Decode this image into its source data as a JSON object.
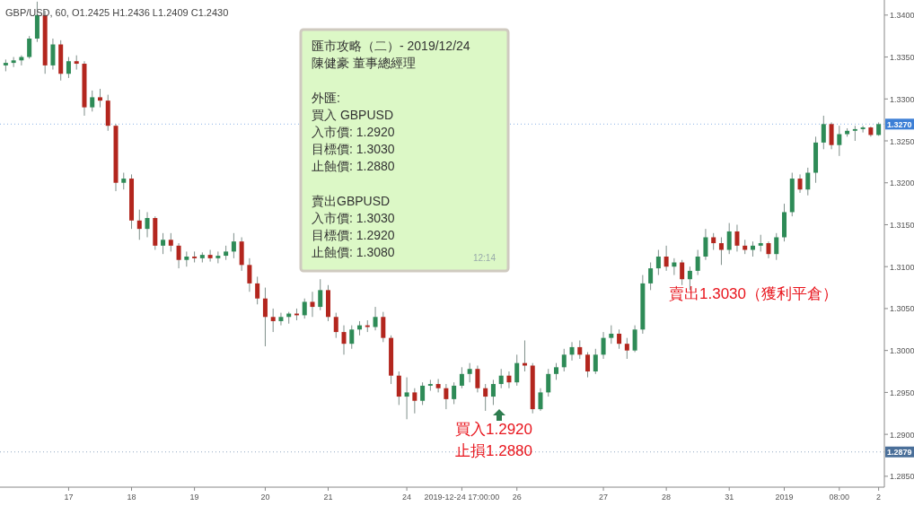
{
  "chart_data": {
    "type": "candlestick",
    "annotations": [
      "GBP/USD, 60,  O1.2425  H1.2436  L1.2409  C1.2430",
      "匯市攻略（二）- 2019/12/24",
      "陳健豪 董事總經理",
      "外匯:",
      "買入 GBPUSD",
      "入市價: 1.2920",
      "目標價: 1.3030",
      "止蝕價: 1.2880",
      "賣出GBPUSD",
      "入市價: 1.3030",
      "目標價: 1.2920",
      "止蝕價: 1.3080",
      "12:14",
      "買入1.2920",
      "止損1.2880",
      "賣出1.3030（獲利平倉）"
    ],
    "categories": [
      null,
      null,
      null,
      null,
      null,
      null,
      null,
      null,
      "17",
      null,
      null,
      null,
      null,
      null,
      null,
      null,
      "18",
      null,
      null,
      null,
      null,
      null,
      null,
      null,
      "19",
      null,
      null,
      null,
      null,
      null,
      null,
      null,
      null,
      "20",
      null,
      null,
      null,
      null,
      null,
      null,
      null,
      "21",
      null,
      null,
      null,
      null,
      null,
      null,
      null,
      null,
      null,
      "24",
      null,
      null,
      null,
      null,
      null,
      null,
      "2019-12-24 17:00:00",
      null,
      null,
      null,
      null,
      null,
      null,
      "26",
      null,
      null,
      null,
      null,
      null,
      null,
      null,
      null,
      null,
      null,
      "27",
      null,
      null,
      null,
      null,
      null,
      null,
      null,
      "28",
      null,
      null,
      null,
      null,
      null,
      null,
      null,
      "31",
      null,
      null,
      null,
      null,
      null,
      null,
      "2019",
      null,
      null,
      null,
      null,
      null,
      null,
      "08:00",
      null,
      null,
      null,
      null,
      "2"
    ],
    "ohlc": [
      [
        1.334,
        1.3347,
        1.3333,
        1.3343
      ],
      [
        1.3343,
        1.335,
        1.3338,
        1.3346
      ],
      [
        1.3346,
        1.3352,
        1.334,
        1.335
      ],
      [
        1.335,
        1.3375,
        1.3348,
        1.3372
      ],
      [
        1.3372,
        1.3416,
        1.3368,
        1.34
      ],
      [
        1.34,
        1.3405,
        1.333,
        1.334
      ],
      [
        1.334,
        1.3372,
        1.3335,
        1.3365
      ],
      [
        1.3365,
        1.337,
        1.3322,
        1.333
      ],
      [
        1.333,
        1.335,
        1.3325,
        1.3345
      ],
      [
        1.3345,
        1.3352,
        1.3335,
        1.3342
      ],
      [
        1.3342,
        1.3345,
        1.328,
        1.329
      ],
      [
        1.329,
        1.331,
        1.3285,
        1.3302
      ],
      [
        1.3302,
        1.3312,
        1.329,
        1.3298
      ],
      [
        1.3298,
        1.3305,
        1.3262,
        1.3268
      ],
      [
        1.3268,
        1.327,
        1.319,
        1.32
      ],
      [
        1.32,
        1.3212,
        1.3192,
        1.3205
      ],
      [
        1.3205,
        1.321,
        1.3145,
        1.3155
      ],
      [
        1.3155,
        1.3168,
        1.3132,
        1.3145
      ],
      [
        1.3145,
        1.3165,
        1.3135,
        1.3158
      ],
      [
        1.3158,
        1.316,
        1.312,
        1.3125
      ],
      [
        1.3125,
        1.314,
        1.3115,
        1.3132
      ],
      [
        1.3132,
        1.314,
        1.3118,
        1.3125
      ],
      [
        1.3125,
        1.3128,
        1.3098,
        1.3108
      ],
      [
        1.3108,
        1.3118,
        1.31,
        1.3112
      ],
      [
        1.3112,
        1.3118,
        1.3105,
        1.311
      ],
      [
        1.311,
        1.3117,
        1.3105,
        1.3114
      ],
      [
        1.3114,
        1.312,
        1.3106,
        1.311
      ],
      [
        1.311,
        1.3118,
        1.3104,
        1.3113
      ],
      [
        1.3113,
        1.3125,
        1.3108,
        1.3118
      ],
      [
        1.3118,
        1.314,
        1.311,
        1.313
      ],
      [
        1.313,
        1.3135,
        1.3095,
        1.3102
      ],
      [
        1.3102,
        1.311,
        1.307,
        1.308
      ],
      [
        1.308,
        1.3088,
        1.3055,
        1.3062
      ],
      [
        1.3062,
        1.3075,
        1.3005,
        1.304
      ],
      [
        1.304,
        1.305,
        1.3022,
        1.3035
      ],
      [
        1.3035,
        1.3045,
        1.303,
        1.304
      ],
      [
        1.304,
        1.3046,
        1.3032,
        1.3044
      ],
      [
        1.3044,
        1.305,
        1.3036,
        1.3042
      ],
      [
        1.3042,
        1.3062,
        1.3038,
        1.3058
      ],
      [
        1.3058,
        1.307,
        1.304,
        1.3052
      ],
      [
        1.3052,
        1.3085,
        1.3048,
        1.3072
      ],
      [
        1.3072,
        1.3078,
        1.3035,
        1.304
      ],
      [
        1.304,
        1.3045,
        1.3015,
        1.3022
      ],
      [
        1.3022,
        1.303,
        1.2995,
        1.3008
      ],
      [
        1.3008,
        1.303,
        1.3002,
        1.3025
      ],
      [
        1.3025,
        1.3035,
        1.3018,
        1.303
      ],
      [
        1.303,
        1.3036,
        1.3022,
        1.3028
      ],
      [
        1.3028,
        1.3052,
        1.3024,
        1.304
      ],
      [
        1.304,
        1.3046,
        1.301,
        1.3015
      ],
      [
        1.3015,
        1.3018,
        1.296,
        1.297
      ],
      [
        1.297,
        1.2975,
        1.2935,
        1.2945
      ],
      [
        1.2945,
        1.2968,
        1.2918,
        1.295
      ],
      [
        1.295,
        1.2955,
        1.2925,
        1.294
      ],
      [
        1.294,
        1.2962,
        1.2935,
        1.2958
      ],
      [
        1.2958,
        1.2965,
        1.2952,
        1.296
      ],
      [
        1.296,
        1.2966,
        1.295,
        1.2955
      ],
      [
        1.2955,
        1.296,
        1.293,
        1.2942
      ],
      [
        1.2942,
        1.2962,
        1.2936,
        1.2958
      ],
      [
        1.2958,
        1.298,
        1.2955,
        1.2972
      ],
      [
        1.2972,
        1.2985,
        1.2962,
        1.2978
      ],
      [
        1.2978,
        1.2982,
        1.295,
        1.2955
      ],
      [
        1.2955,
        1.296,
        1.2928,
        1.2945
      ],
      [
        1.2945,
        1.2965,
        1.2935,
        1.296
      ],
      [
        1.296,
        1.2978,
        1.2955,
        1.297
      ],
      [
        1.297,
        1.2975,
        1.2955,
        1.2962
      ],
      [
        1.2962,
        1.2995,
        1.2958,
        1.2985
      ],
      [
        1.2985,
        1.3012,
        1.2975,
        1.2982
      ],
      [
        1.2982,
        1.2985,
        1.2925,
        1.293
      ],
      [
        1.293,
        1.2955,
        1.2928,
        1.295
      ],
      [
        1.295,
        1.2978,
        1.2945,
        1.2972
      ],
      [
        1.2972,
        1.2985,
        1.2965,
        1.298
      ],
      [
        1.298,
        1.3002,
        1.2975,
        1.2995
      ],
      [
        1.2995,
        1.301,
        1.2988,
        1.3004
      ],
      [
        1.3004,
        1.3012,
        1.299,
        1.2995
      ],
      [
        1.2995,
        1.2998,
        1.2968,
        1.2975
      ],
      [
        1.2975,
        1.3002,
        1.2972,
        1.2995
      ],
      [
        1.2995,
        1.3022,
        1.299,
        1.3015
      ],
      [
        1.3015,
        1.303,
        1.3008,
        1.302
      ],
      [
        1.302,
        1.3025,
        1.3002,
        1.3008
      ],
      [
        1.3008,
        1.3015,
        1.299,
        1.3
      ],
      [
        1.3,
        1.303,
        1.2998,
        1.3025
      ],
      [
        1.3025,
        1.309,
        1.302,
        1.308
      ],
      [
        1.308,
        1.3105,
        1.3072,
        1.3098
      ],
      [
        1.3098,
        1.312,
        1.309,
        1.3112
      ],
      [
        1.3112,
        1.3125,
        1.3095,
        1.31
      ],
      [
        1.31,
        1.311,
        1.309,
        1.3105
      ],
      [
        1.3105,
        1.3108,
        1.3078,
        1.3085
      ],
      [
        1.3085,
        1.31,
        1.3072,
        1.3095
      ],
      [
        1.3095,
        1.312,
        1.309,
        1.3112
      ],
      [
        1.3112,
        1.3145,
        1.3108,
        1.3135
      ],
      [
        1.3135,
        1.314,
        1.312,
        1.3128
      ],
      [
        1.3128,
        1.3135,
        1.3102,
        1.312
      ],
      [
        1.312,
        1.3152,
        1.3115,
        1.3142
      ],
      [
        1.3142,
        1.315,
        1.3118,
        1.3125
      ],
      [
        1.3125,
        1.3132,
        1.3115,
        1.312
      ],
      [
        1.312,
        1.313,
        1.3112,
        1.3125
      ],
      [
        1.3125,
        1.3138,
        1.3118,
        1.3128
      ],
      [
        1.3128,
        1.313,
        1.311,
        1.3115
      ],
      [
        1.3115,
        1.314,
        1.3108,
        1.3135
      ],
      [
        1.3135,
        1.3175,
        1.313,
        1.3165
      ],
      [
        1.3165,
        1.3212,
        1.316,
        1.3205
      ],
      [
        1.3205,
        1.321,
        1.3188,
        1.3192
      ],
      [
        1.3192,
        1.3218,
        1.3185,
        1.3212
      ],
      [
        1.3212,
        1.3255,
        1.32,
        1.3248
      ],
      [
        1.3248,
        1.328,
        1.324,
        1.327
      ],
      [
        1.327,
        1.3272,
        1.324,
        1.3245
      ],
      [
        1.3245,
        1.3268,
        1.3232,
        1.3258
      ],
      [
        1.3258,
        1.3265,
        1.3255,
        1.3262
      ],
      [
        1.3262,
        1.3268,
        1.325,
        1.3264
      ],
      [
        1.3264,
        1.3268,
        1.326,
        1.3266
      ],
      [
        1.3266,
        1.3267,
        1.3255,
        1.3257
      ],
      [
        1.3257,
        1.3272,
        1.3256,
        1.327
      ]
    ],
    "ylim": [
      1.2837,
      1.3418
    ],
    "yticks": [
      {
        "value": 1.285,
        "label": "1.2850"
      },
      {
        "value": 1.29,
        "label": "1.2900"
      },
      {
        "value": 1.295,
        "label": "1.2950"
      },
      {
        "value": 1.3,
        "label": "1.3000"
      },
      {
        "value": 1.305,
        "label": "1.3050"
      },
      {
        "value": 1.31,
        "label": "1.3100"
      },
      {
        "value": 1.315,
        "label": "1.3150"
      },
      {
        "value": 1.32,
        "label": "1.3200"
      },
      {
        "value": 1.325,
        "label": "1.3250"
      },
      {
        "value": 1.33,
        "label": "1.3300"
      },
      {
        "value": 1.335,
        "label": "1.3350"
      },
      {
        "value": 1.34,
        "label": "1.3400"
      }
    ],
    "ref_lines": [
      {
        "axis": "y",
        "value": 1.327,
        "label": "1.3270",
        "color": "#3d7fd6",
        "line_style": "dotted"
      },
      {
        "axis": "y",
        "value": 1.2879,
        "label": "1.2879",
        "color": "#4a6f99",
        "line_style": "dotted"
      }
    ],
    "grid": false
  }
}
